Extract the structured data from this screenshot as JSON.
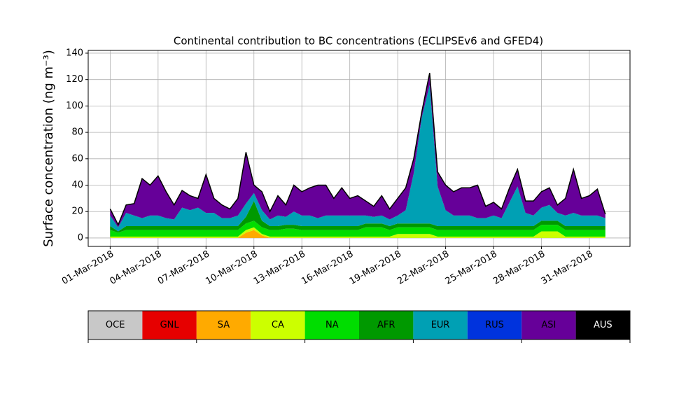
{
  "chart_data": {
    "type": "stacked_area",
    "title": "Continental contribution to BC concentrations (ECLIPSEv6 and GFED4)",
    "y_label": "Surface concentration (ng m⁻³)",
    "x": [
      "2018-03-01T00:00",
      "2018-03-01T12:00",
      "2018-03-02T00:00",
      "2018-03-02T12:00",
      "2018-03-03T00:00",
      "2018-03-03T12:00",
      "2018-03-04T00:00",
      "2018-03-04T12:00",
      "2018-03-05T00:00",
      "2018-03-05T12:00",
      "2018-03-06T00:00",
      "2018-03-06T12:00",
      "2018-03-07T00:00",
      "2018-03-07T12:00",
      "2018-03-08T00:00",
      "2018-03-08T12:00",
      "2018-03-09T00:00",
      "2018-03-09T12:00",
      "2018-03-10T00:00",
      "2018-03-10T12:00",
      "2018-03-11T00:00",
      "2018-03-11T12:00",
      "2018-03-12T00:00",
      "2018-03-12T12:00",
      "2018-03-13T00:00",
      "2018-03-13T12:00",
      "2018-03-14T00:00",
      "2018-03-14T12:00",
      "2018-03-15T00:00",
      "2018-03-15T12:00",
      "2018-03-16T00:00",
      "2018-03-16T12:00",
      "2018-03-17T00:00",
      "2018-03-17T12:00",
      "2018-03-18T00:00",
      "2018-03-18T12:00",
      "2018-03-19T00:00",
      "2018-03-19T12:00",
      "2018-03-20T00:00",
      "2018-03-20T12:00",
      "2018-03-21T00:00",
      "2018-03-21T12:00",
      "2018-03-22T00:00",
      "2018-03-22T12:00",
      "2018-03-23T00:00",
      "2018-03-23T12:00",
      "2018-03-24T00:00",
      "2018-03-24T12:00",
      "2018-03-25T00:00",
      "2018-03-25T12:00",
      "2018-03-26T00:00",
      "2018-03-26T12:00",
      "2018-03-27T00:00",
      "2018-03-27T12:00",
      "2018-03-28T00:00",
      "2018-03-28T12:00",
      "2018-03-29T00:00",
      "2018-03-29T12:00",
      "2018-03-30T00:00",
      "2018-03-30T12:00",
      "2018-03-31T00:00",
      "2018-03-31T12:00",
      "2018-04-01T00:00"
    ],
    "series": [
      {
        "name": "OCE",
        "color": "#c8c8c8",
        "values": [
          0,
          0,
          0,
          0,
          0,
          0,
          0,
          0,
          0,
          0,
          0,
          0,
          0,
          0,
          0,
          0,
          0,
          0,
          0,
          0,
          0,
          0,
          0,
          0,
          0,
          0,
          0,
          0,
          0,
          0,
          0,
          0,
          0,
          0,
          0,
          0,
          0,
          0,
          0,
          0,
          0,
          0,
          0,
          0,
          0,
          0,
          0,
          0,
          0,
          0,
          0,
          0,
          0,
          0,
          0,
          0,
          0,
          0,
          0,
          0,
          0,
          0,
          0
        ]
      },
      {
        "name": "GNL",
        "color": "#e60000",
        "values": [
          0,
          0,
          0,
          0,
          0,
          0,
          0,
          0,
          0,
          0,
          0,
          0,
          0,
          0,
          0,
          0,
          0,
          0,
          0,
          0,
          0,
          0,
          0,
          0,
          0,
          0,
          0,
          0,
          0,
          0,
          0,
          0,
          0,
          0,
          0,
          0,
          0,
          0,
          0,
          0,
          0,
          0,
          0,
          0,
          0,
          0,
          0,
          0,
          0,
          0,
          0,
          0,
          0,
          0,
          0,
          0,
          0,
          0,
          0,
          0,
          0,
          0,
          0
        ]
      },
      {
        "name": "SA",
        "color": "#ffaa00",
        "values": [
          0,
          0,
          0,
          0,
          0,
          0,
          0,
          0,
          0,
          0,
          0,
          0,
          0,
          0,
          0,
          0,
          0,
          4,
          6,
          2,
          0,
          0,
          0,
          0,
          0,
          0,
          0,
          0,
          0,
          0,
          0,
          0,
          0,
          0,
          0,
          0,
          0,
          0,
          0,
          0,
          0,
          0,
          0,
          0,
          0,
          0,
          0,
          0,
          0,
          0,
          0,
          0,
          0,
          0,
          0,
          0,
          0,
          0,
          0,
          0,
          0,
          0,
          0
        ]
      },
      {
        "name": "CA",
        "color": "#ccff00",
        "values": [
          1,
          1,
          1,
          1,
          1,
          1,
          1,
          1,
          1,
          1,
          1,
          1,
          1,
          1,
          1,
          1,
          1,
          2,
          2,
          1,
          1,
          1,
          1,
          1,
          1,
          1,
          1,
          1,
          1,
          1,
          1,
          1,
          1,
          1,
          1,
          1,
          3,
          3,
          3,
          3,
          3,
          1,
          1,
          1,
          1,
          1,
          1,
          1,
          1,
          1,
          1,
          1,
          1,
          1,
          5,
          5,
          5,
          1,
          1,
          1,
          1,
          1,
          1
        ]
      },
      {
        "name": "NA",
        "color": "#00dd00",
        "values": [
          5,
          3,
          5,
          5,
          5,
          5,
          5,
          5,
          5,
          5,
          5,
          5,
          5,
          5,
          5,
          5,
          5,
          5,
          5,
          5,
          5,
          5,
          6,
          6,
          5,
          5,
          5,
          5,
          5,
          5,
          5,
          5,
          7,
          7,
          7,
          5,
          5,
          5,
          5,
          5,
          5,
          5,
          5,
          5,
          5,
          5,
          5,
          5,
          5,
          5,
          5,
          5,
          5,
          5,
          5,
          5,
          5,
          5,
          5,
          5,
          5,
          5,
          5
        ]
      },
      {
        "name": "AFR",
        "color": "#009900",
        "values": [
          3,
          1,
          3,
          3,
          3,
          3,
          3,
          3,
          3,
          3,
          3,
          3,
          3,
          3,
          3,
          3,
          3,
          5,
          15,
          5,
          3,
          3,
          3,
          3,
          3,
          3,
          3,
          3,
          3,
          3,
          3,
          3,
          3,
          3,
          3,
          3,
          3,
          3,
          3,
          3,
          3,
          3,
          3,
          3,
          3,
          3,
          3,
          3,
          3,
          3,
          3,
          3,
          3,
          3,
          3,
          3,
          3,
          3,
          3,
          3,
          3,
          3,
          3
        ]
      },
      {
        "name": "EUR",
        "color": "#00a0b4",
        "values": [
          8,
          3,
          10,
          8,
          6,
          8,
          8,
          6,
          5,
          14,
          12,
          14,
          10,
          10,
          6,
          6,
          8,
          10,
          6,
          8,
          5,
          8,
          6,
          10,
          8,
          8,
          6,
          8,
          8,
          8,
          8,
          8,
          6,
          5,
          6,
          5,
          6,
          10,
          38,
          80,
          105,
          30,
          12,
          8,
          8,
          8,
          6,
          6,
          8,
          6,
          18,
          30,
          10,
          8,
          10,
          12,
          6,
          8,
          10,
          8,
          8,
          8,
          6
        ]
      },
      {
        "name": "RUS",
        "color": "#0033dd",
        "values": [
          0,
          0,
          0,
          0,
          0,
          0,
          0,
          0,
          0,
          0,
          0,
          0,
          0,
          0,
          0,
          0,
          0,
          0,
          0,
          0,
          0,
          0,
          0,
          0,
          0,
          0,
          0,
          0,
          0,
          0,
          0,
          0,
          0,
          0,
          0,
          0,
          0,
          0,
          0,
          0,
          0,
          0,
          0,
          0,
          0,
          0,
          0,
          0,
          0,
          0,
          0,
          0,
          0,
          0,
          0,
          0,
          0,
          0,
          0,
          0,
          0,
          0,
          0
        ]
      },
      {
        "name": "ASI",
        "color": "#660099",
        "values": [
          5,
          2,
          6,
          9,
          30,
          23,
          30,
          20,
          11,
          13,
          11,
          7,
          29,
          11,
          10,
          7,
          13,
          39,
          6,
          14,
          6,
          15,
          9,
          20,
          18,
          21,
          25,
          23,
          13,
          21,
          13,
          15,
          11,
          8,
          15,
          8,
          13,
          17,
          11,
          4,
          9,
          11,
          19,
          18,
          21,
          21,
          25,
          9,
          10,
          7,
          11,
          13,
          9,
          11,
          12,
          13,
          6,
          13,
          33,
          13,
          15,
          20,
          3
        ]
      },
      {
        "name": "AUS",
        "color": "#000000",
        "values": [
          0,
          0,
          0,
          0,
          0,
          0,
          0,
          0,
          0,
          0,
          0,
          0,
          0,
          0,
          0,
          0,
          0,
          0,
          0,
          0,
          0,
          0,
          0,
          0,
          0,
          0,
          0,
          0,
          0,
          0,
          0,
          0,
          0,
          0,
          0,
          0,
          0,
          0,
          0,
          0,
          0,
          0,
          0,
          0,
          0,
          0,
          0,
          0,
          0,
          0,
          0,
          0,
          0,
          0,
          0,
          0,
          0,
          0,
          0,
          0,
          0,
          0,
          0
        ]
      }
    ],
    "xlim": [
      "2018-02-27T15:00",
      "2018-04-02T13:00"
    ],
    "xticks": [
      {
        "value": "2018-03-01T00:00",
        "label": "01-Mar-2018"
      },
      {
        "value": "2018-03-04T00:00",
        "label": "04-Mar-2018"
      },
      {
        "value": "2018-03-07T00:00",
        "label": "07-Mar-2018"
      },
      {
        "value": "2018-03-10T00:00",
        "label": "10-Mar-2018"
      },
      {
        "value": "2018-03-13T00:00",
        "label": "13-Mar-2018"
      },
      {
        "value": "2018-03-16T00:00",
        "label": "16-Mar-2018"
      },
      {
        "value": "2018-03-19T00:00",
        "label": "19-Mar-2018"
      },
      {
        "value": "2018-03-22T00:00",
        "label": "22-Mar-2018"
      },
      {
        "value": "2018-03-25T00:00",
        "label": "25-Mar-2018"
      },
      {
        "value": "2018-03-28T00:00",
        "label": "28-Mar-2018"
      },
      {
        "value": "2018-03-31T00:00",
        "label": "31-Mar-2018"
      }
    ],
    "ylim": [
      -6.4,
      142.1
    ],
    "yticks": [
      0,
      20,
      40,
      60,
      80,
      100,
      120,
      140
    ],
    "grid": true
  }
}
